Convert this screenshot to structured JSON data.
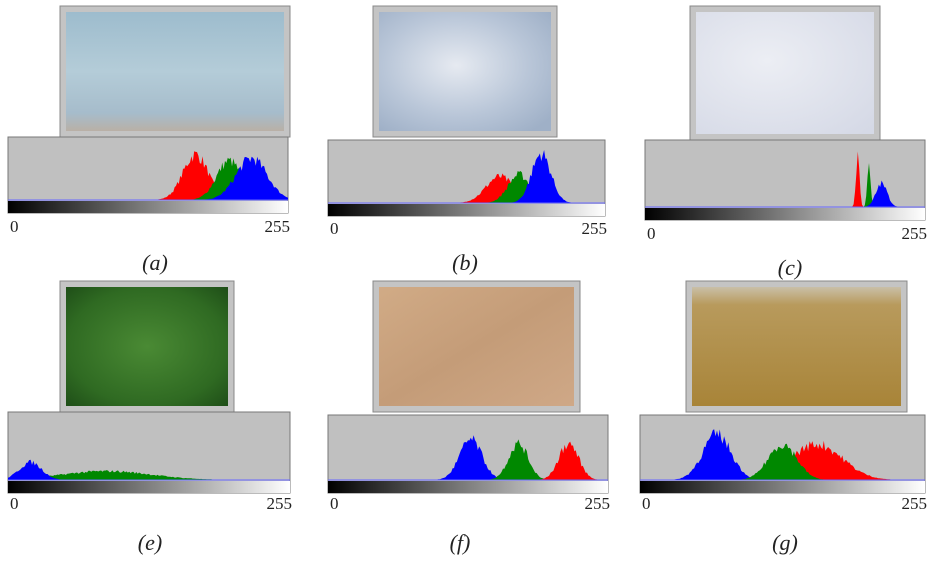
{
  "panels": [
    {
      "label": "(a)",
      "axis_min": 0,
      "axis_max": 255
    },
    {
      "label": "(b)",
      "axis_min": 0,
      "axis_max": 255
    },
    {
      "label": "(c)",
      "axis_min": 0,
      "axis_max": 255
    },
    {
      "label": "(e)",
      "axis_min": 0,
      "axis_max": 255
    },
    {
      "label": "(f)",
      "axis_min": 0,
      "axis_max": 255
    },
    {
      "label": "(g)",
      "axis_min": 0,
      "axis_max": 255
    }
  ]
}
